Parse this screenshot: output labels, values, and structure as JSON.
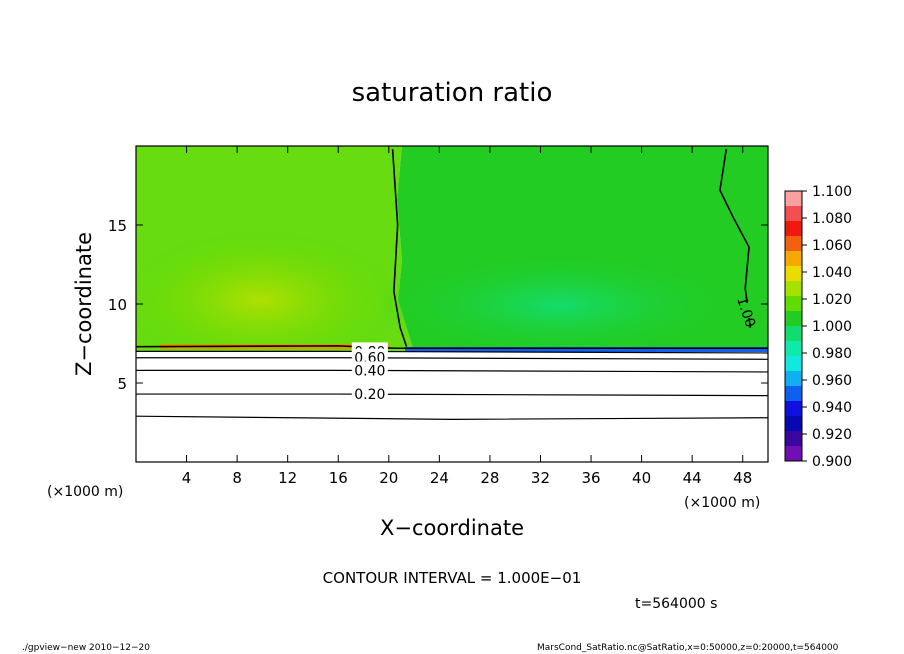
{
  "chart_data": {
    "type": "heatmap",
    "title": "saturation ratio",
    "xlabel": "X−coordinate",
    "ylabel": "Z−coordinate",
    "x_unit_label": "(×1000 m)",
    "y_unit_label": "(×1000 m)",
    "xlim": [
      0,
      50
    ],
    "ylim": [
      0,
      20
    ],
    "x_ticks": [
      4,
      8,
      12,
      16,
      20,
      24,
      28,
      32,
      36,
      40,
      44,
      48
    ],
    "y_ticks": [
      5,
      10,
      15
    ],
    "colorbar": {
      "labels": [
        "1.100",
        "1.080",
        "1.060",
        "1.040",
        "1.020",
        "1.000",
        "0.980",
        "0.960",
        "0.940",
        "0.920",
        "0.900"
      ],
      "colors": [
        "#f9a0a0",
        "#f25050",
        "#ee1a10",
        "#f26010",
        "#f6a800",
        "#e8dc00",
        "#a8e000",
        "#60dc00",
        "#22cc22",
        "#10dc70",
        "#10eaa8",
        "#10e8e0",
        "#10b0f0",
        "#1060f0",
        "#1010e0",
        "#0808b0",
        "#3808a0",
        "#7010b0"
      ]
    },
    "contours": [
      {
        "label": "1.00",
        "x": [
          0,
          16,
          20.5,
          50
        ],
        "y": [
          7.3,
          7.35,
          7.2,
          7.2
        ]
      },
      {
        "label": "0.80",
        "x": [
          0,
          16,
          50
        ],
        "y": [
          7.0,
          7.0,
          6.9
        ]
      },
      {
        "label": "0.60",
        "x": [
          0,
          16,
          50
        ],
        "y": [
          6.6,
          6.6,
          6.5
        ]
      },
      {
        "label": "0.40",
        "x": [
          0,
          16,
          50
        ],
        "y": [
          5.8,
          5.8,
          5.7
        ]
      },
      {
        "label": "0.20",
        "x": [
          0,
          16,
          50
        ],
        "y": [
          4.3,
          4.3,
          4.2
        ]
      },
      {
        "label": "",
        "x": [
          0,
          25,
          50
        ],
        "y": [
          2.9,
          2.7,
          2.8
        ]
      },
      {
        "label": "1.00",
        "x": [
          20.3,
          20.7,
          20.4,
          20.9,
          21.4
        ],
        "y": [
          19.8,
          15,
          10.8,
          8.5,
          7.3
        ]
      },
      {
        "label": "1.00",
        "x": [
          46.7,
          46.2,
          47.3,
          48.5,
          48.2,
          48.6
        ],
        "y": [
          19.8,
          17.2,
          15.4,
          13.6,
          11.0,
          8.5
        ]
      }
    ],
    "annotations": [
      "CONTOUR INTERVAL = 1.000E−01",
      "t=564000 s"
    ]
  },
  "footer": {
    "left": "./gpview−new  2010−12−20",
    "right": "MarsCond_SatRatio.nc@SatRatio,x=0:50000,z=0:20000,t=564000"
  }
}
